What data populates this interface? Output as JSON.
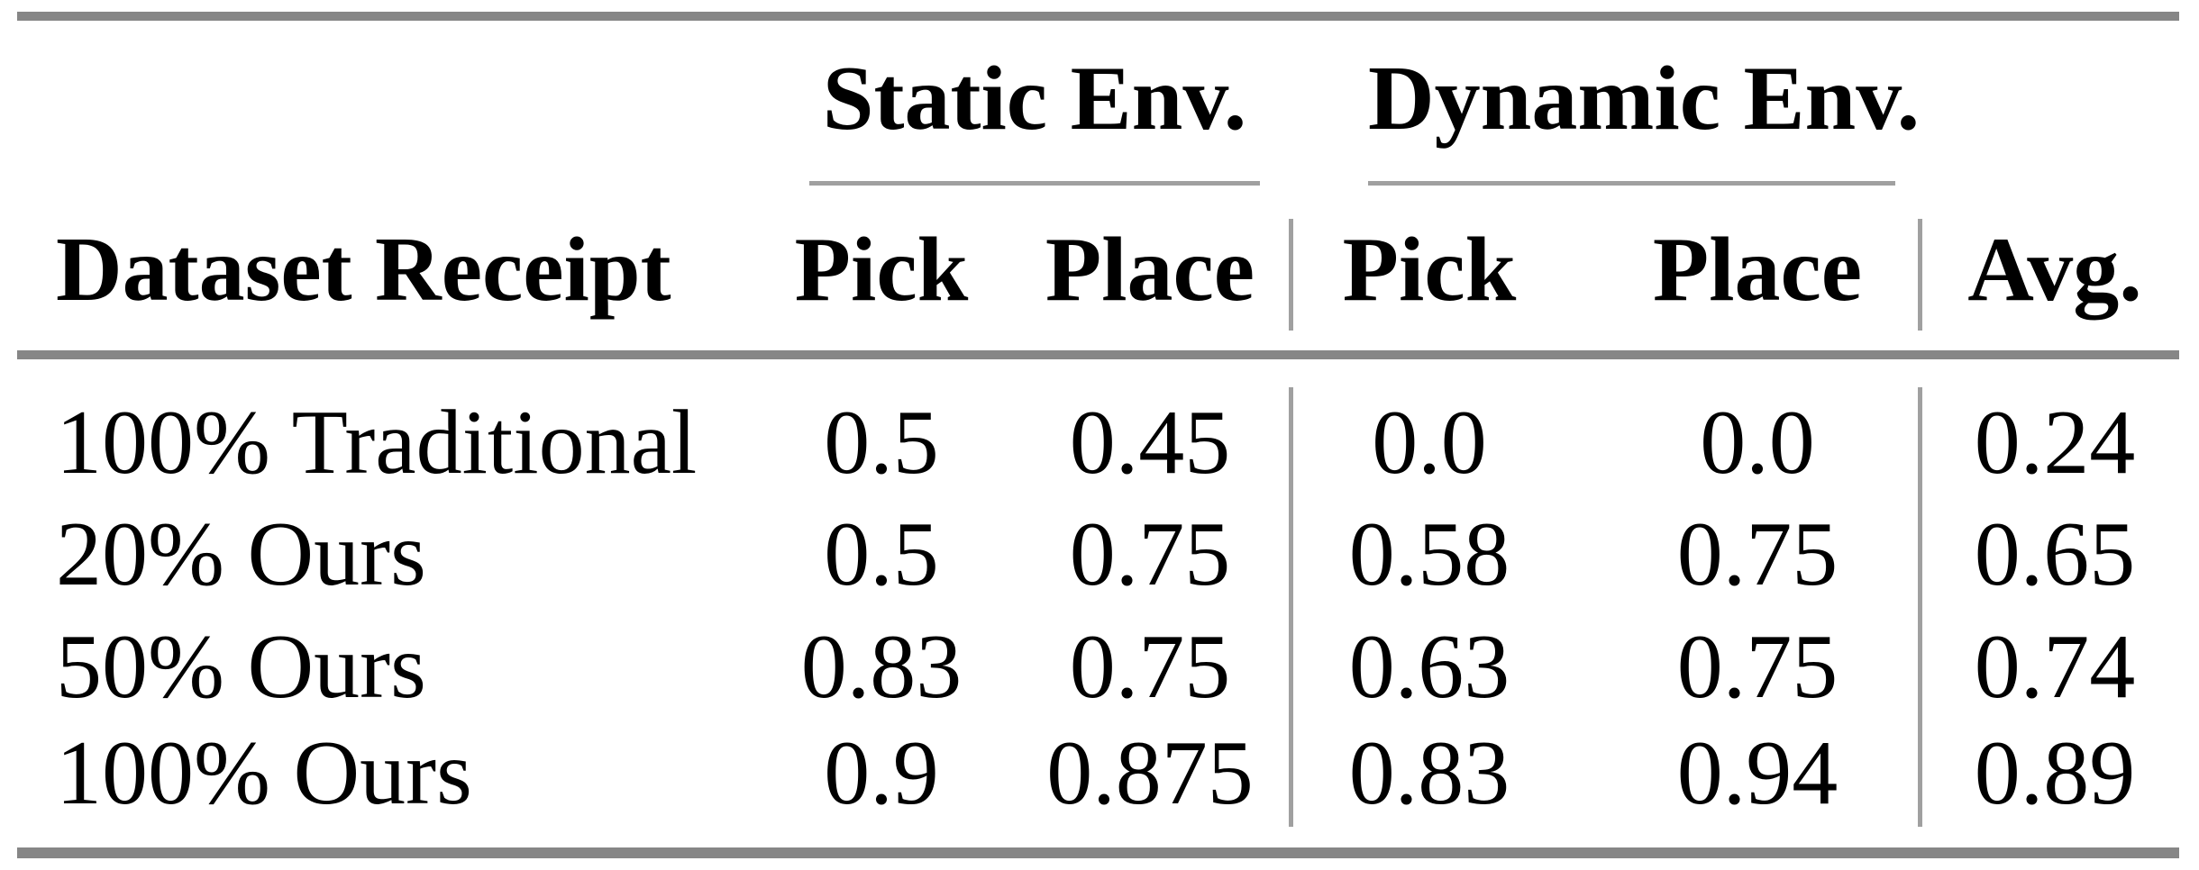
{
  "table": {
    "header": {
      "row_label_column": "Dataset Receipt",
      "groups": [
        {
          "label": "Static Env.",
          "columns": [
            "Pick",
            "Place"
          ]
        },
        {
          "label": "Dynamic Env.",
          "columns": [
            "Pick",
            "Place"
          ]
        }
      ],
      "avg_column": "Avg."
    },
    "rows": [
      {
        "label": "100% Traditional",
        "values": [
          "0.5",
          "0.45",
          "0.0",
          "0.0",
          "0.24"
        ]
      },
      {
        "label": "20% Ours",
        "values": [
          "0.5",
          "0.75",
          "0.58",
          "0.75",
          "0.65"
        ]
      },
      {
        "label": "50% Ours",
        "values": [
          "0.83",
          "0.75",
          "0.63",
          "0.75",
          "0.74"
        ]
      },
      {
        "label": "100% Ours",
        "values": [
          "0.9",
          "0.875",
          "0.83",
          "0.94",
          "0.89"
        ]
      }
    ],
    "colors": {
      "thick_rule": "#868686",
      "thin_rule": "#a0a0a0",
      "text": "#000000",
      "background": "#ffffff"
    }
  }
}
